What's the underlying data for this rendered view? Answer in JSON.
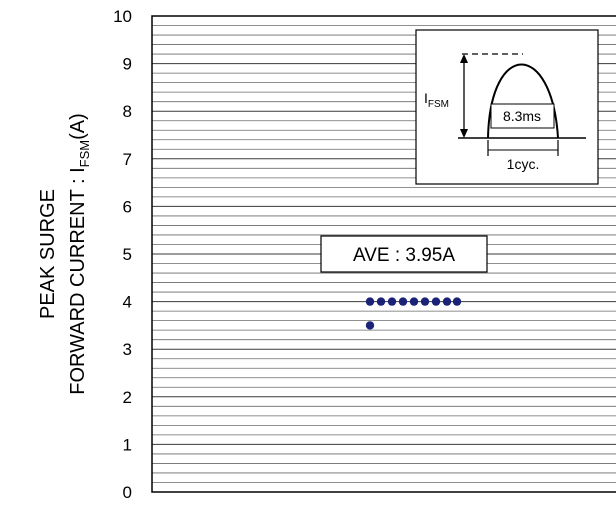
{
  "chart_data": {
    "type": "scatter",
    "ylim": [
      0,
      10
    ],
    "yticks": [
      0,
      1,
      2,
      3,
      4,
      5,
      6,
      7,
      8,
      9,
      10
    ],
    "ylabel_line1": "PEAK SURGE",
    "ylabel_line2_prefix": "FORWARD CURRENT : I",
    "ylabel_line2_sub": "FSM",
    "ylabel_line2_suffix": "(A)",
    "grid": true,
    "minor_grid_step": 0.2,
    "point_color": "#1a2377",
    "points": [
      3.5,
      4.0,
      4.0,
      4.0,
      4.0,
      4.0,
      4.0,
      4.0,
      4.0,
      4.0
    ],
    "annotation": "AVE : 3.95A",
    "inset": {
      "symbol_main": "I",
      "symbol_sub": "FSM",
      "pulse_label": "8.3ms",
      "period_label": "1cyc."
    }
  }
}
